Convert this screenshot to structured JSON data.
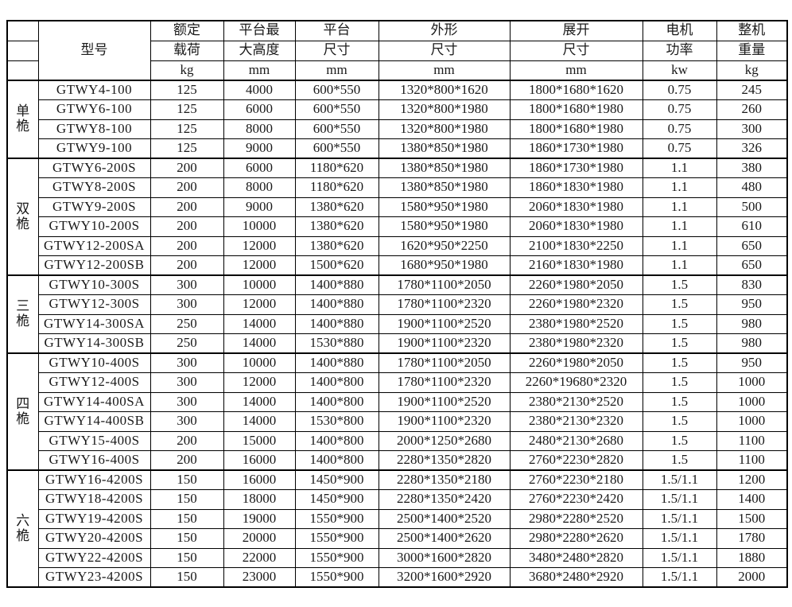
{
  "colors": {
    "background": "#ffffff",
    "border": "#000000",
    "text": "#1a1a1a"
  },
  "table": {
    "headers": {
      "model": "型号",
      "columns": [
        {
          "line1": "额定",
          "line2": "载荷",
          "unit": "kg"
        },
        {
          "line1": "平台最",
          "line2": "大高度",
          "unit": "mm"
        },
        {
          "line1": "平台",
          "line2": "尺寸",
          "unit": "mm"
        },
        {
          "line1": "外形",
          "line2": "尺寸",
          "unit": "mm"
        },
        {
          "line1": "展开",
          "line2": "尺寸",
          "unit": "mm"
        },
        {
          "line1": "电机",
          "line2": "功率",
          "unit": "kw"
        },
        {
          "line1": "整机",
          "line2": "重量",
          "unit": "kg"
        }
      ]
    },
    "groups": [
      {
        "label": "单桅",
        "rows": [
          [
            "GTWY4-100",
            "125",
            "4000",
            "600*550",
            "1320*800*1620",
            "1800*1680*1620",
            "0.75",
            "245"
          ],
          [
            "GTWY6-100",
            "125",
            "6000",
            "600*550",
            "1320*800*1980",
            "1800*1680*1980",
            "0.75",
            "260"
          ],
          [
            "GTWY8-100",
            "125",
            "8000",
            "600*550",
            "1320*800*1980",
            "1800*1680*1980",
            "0.75",
            "300"
          ],
          [
            "GTWY9-100",
            "125",
            "9000",
            "600*550",
            "1380*850*1980",
            "1860*1730*1980",
            "0.75",
            "326"
          ]
        ]
      },
      {
        "label": "双桅",
        "rows": [
          [
            "GTWY6-200S",
            "200",
            "6000",
            "1180*620",
            "1380*850*1980",
            "1860*1730*1980",
            "1.1",
            "380"
          ],
          [
            "GTWY8-200S",
            "200",
            "8000",
            "1180*620",
            "1380*850*1980",
            "1860*1830*1980",
            "1.1",
            "480"
          ],
          [
            "GTWY9-200S",
            "200",
            "9000",
            "1380*620",
            "1580*950*1980",
            "2060*1830*1980",
            "1.1",
            "500"
          ],
          [
            "GTWY10-200S",
            "200",
            "10000",
            "1380*620",
            "1580*950*1980",
            "2060*1830*1980",
            "1.1",
            "610"
          ],
          [
            "GTWY12-200SA",
            "200",
            "12000",
            "1380*620",
            "1620*950*2250",
            "2100*1830*2250",
            "1.1",
            "650"
          ],
          [
            "GTWY12-200SB",
            "200",
            "12000",
            "1500*620",
            "1680*950*1980",
            "2160*1830*1980",
            "1.1",
            "650"
          ]
        ]
      },
      {
        "label": "三桅",
        "rows": [
          [
            "GTWY10-300S",
            "300",
            "10000",
            "1400*880",
            "1780*1100*2050",
            "2260*1980*2050",
            "1.5",
            "830"
          ],
          [
            "GTWY12-300S",
            "300",
            "12000",
            "1400*880",
            "1780*1100*2320",
            "2260*1980*2320",
            "1.5",
            "950"
          ],
          [
            "GTWY14-300SA",
            "250",
            "14000",
            "1400*880",
            "1900*1100*2520",
            "2380*1980*2520",
            "1.5",
            "980"
          ],
          [
            "GTWY14-300SB",
            "250",
            "14000",
            "1530*880",
            "1900*1100*2320",
            "2380*1980*2320",
            "1.5",
            "980"
          ]
        ]
      },
      {
        "label": "四桅",
        "rows": [
          [
            "GTWY10-400S",
            "300",
            "10000",
            "1400*880",
            "1780*1100*2050",
            "2260*1980*2050",
            "1.5",
            "950"
          ],
          [
            "GTWY12-400S",
            "300",
            "12000",
            "1400*800",
            "1780*1100*2320",
            "2260*19680*2320",
            "1.5",
            "1000"
          ],
          [
            "GTWY14-400SA",
            "300",
            "14000",
            "1400*800",
            "1900*1100*2520",
            "2380*2130*2520",
            "1.5",
            "1000"
          ],
          [
            "GTWY14-400SB",
            "300",
            "14000",
            "1530*800",
            "1900*1100*2320",
            "2380*2130*2320",
            "1.5",
            "1000"
          ],
          [
            "GTWY15-400S",
            "200",
            "15000",
            "1400*800",
            "2000*1250*2680",
            "2480*2130*2680",
            "1.5",
            "1100"
          ],
          [
            "GTWY16-400S",
            "200",
            "16000",
            "1400*800",
            "2280*1350*2820",
            "2760*2230*2820",
            "1.5",
            "1100"
          ]
        ]
      },
      {
        "label": "六桅",
        "rows": [
          [
            "GTWY16-4200S",
            "150",
            "16000",
            "1450*900",
            "2280*1350*2180",
            "2760*2230*2180",
            "1.5/1.1",
            "1200"
          ],
          [
            "GTWY18-4200S",
            "150",
            "18000",
            "1450*900",
            "2280*1350*2420",
            "2760*2230*2420",
            "1.5/1.1",
            "1400"
          ],
          [
            "GTWY19-4200S",
            "150",
            "19000",
            "1550*900",
            "2500*1400*2520",
            "2980*2280*2520",
            "1.5/1.1",
            "1500"
          ],
          [
            "GTWY20-4200S",
            "150",
            "20000",
            "1550*900",
            "2500*1400*2620",
            "2980*2280*2620",
            "1.5/1.1",
            "1780"
          ],
          [
            "GTWY22-4200S",
            "150",
            "22000",
            "1550*900",
            "3000*1600*2820",
            "3480*2480*2820",
            "1.5/1.1",
            "1880"
          ],
          [
            "GTWY23-4200S",
            "150",
            "23000",
            "1550*900",
            "3200*1600*2920",
            "3680*2480*2920",
            "1.5/1.1",
            "2000"
          ]
        ]
      }
    ]
  }
}
